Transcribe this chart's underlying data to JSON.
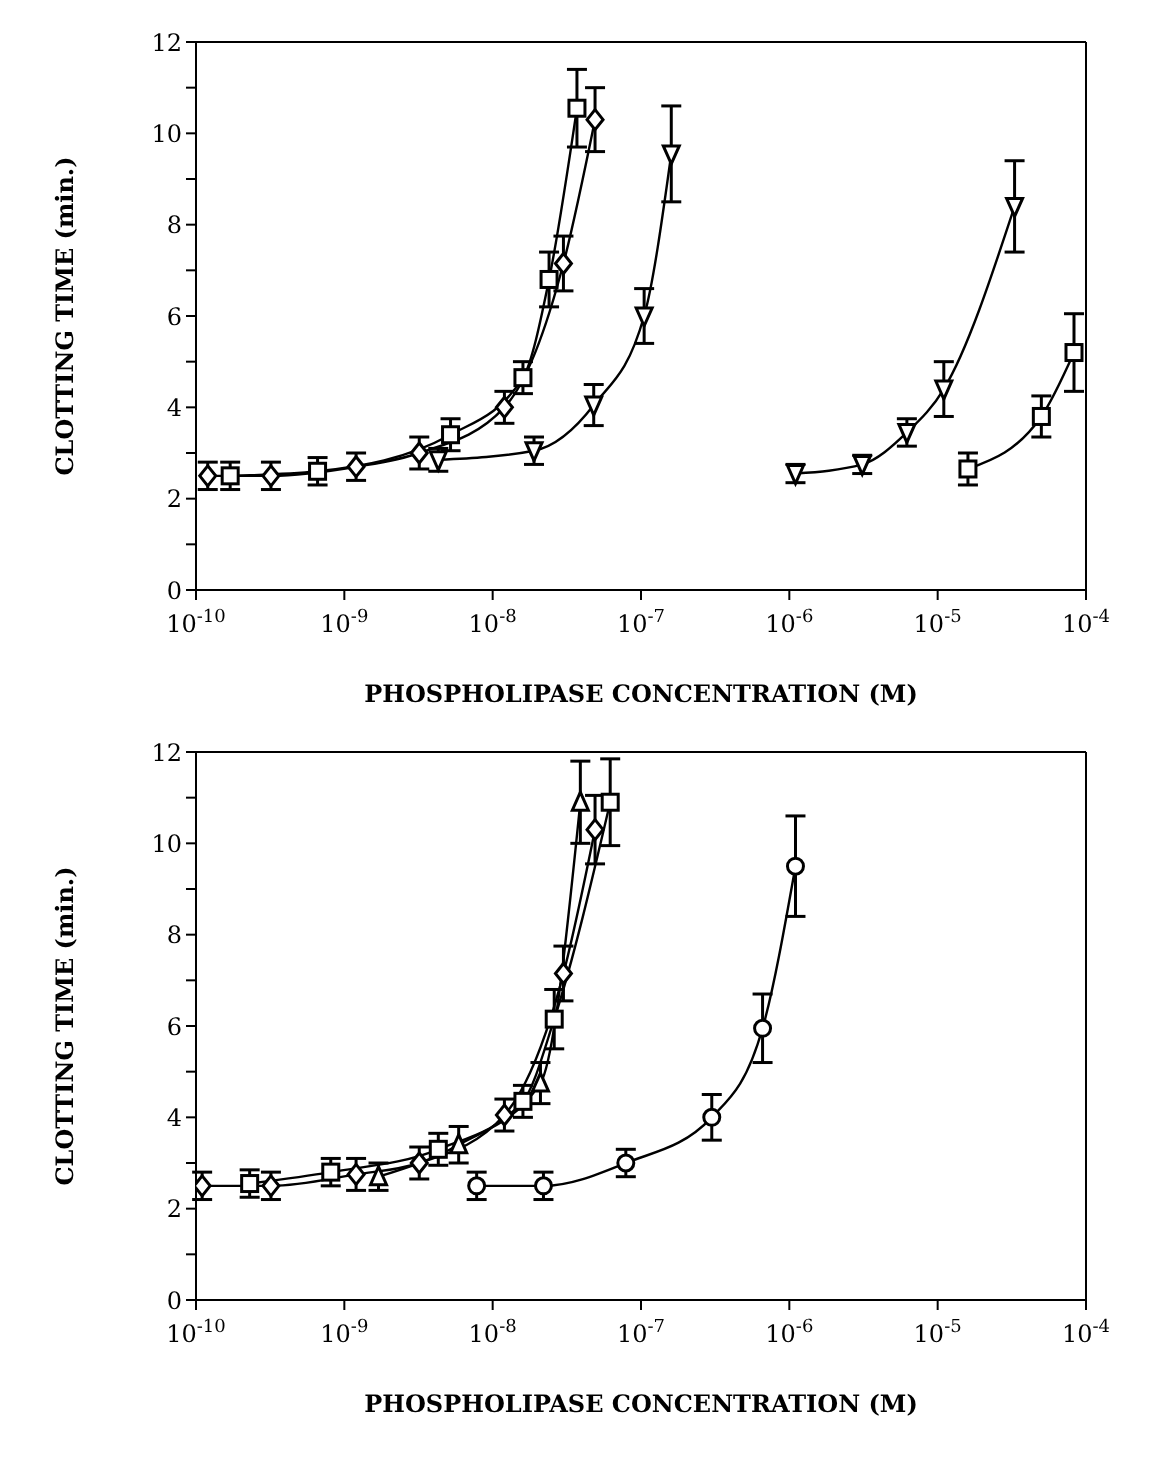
{
  "chart_data": [
    {
      "type": "line",
      "xlabel": "PHOSPHOLIPASE CONCENTRATION (M)",
      "ylabel": "CLOTTING TIME (min.)",
      "log": "x",
      "line_style": "solid",
      "xlim": [
        1e-10,
        0.0001
      ],
      "xticks": [
        {
          "value": 1e-10,
          "label": "10$^{-10}$"
        },
        {
          "value": 1e-09,
          "label": "10$^{-9}$"
        },
        {
          "value": 1e-08,
          "label": "10$^{-8}$"
        },
        {
          "value": 1e-07,
          "label": "10$^{-7}$"
        },
        {
          "value": 1e-06,
          "label": "10$^{-6}$"
        },
        {
          "value": 1e-05,
          "label": "10$^{-5}$"
        },
        {
          "value": 0.0001,
          "label": "10$^{-4}$"
        }
      ],
      "ylim": [
        0,
        12
      ],
      "yticks": [
        0,
        {
          "value": 1,
          "label": null
        },
        2,
        {
          "value": 3,
          "label": null
        },
        4,
        {
          "value": 5,
          "label": null
        },
        6,
        {
          "value": 7,
          "label": null
        },
        8,
        {
          "value": 9,
          "label": null
        },
        10,
        {
          "value": 11,
          "label": null
        },
        12
      ],
      "series": [
        {
          "color": "#000000",
          "marker": "diamond",
          "x": [
            1.2e-10,
            3.2e-10,
            1.2e-09,
            3.2e-09,
            1.2e-08,
            3e-08,
            4.9e-08
          ],
          "values": [
            2.5,
            2.5,
            2.7,
            3.0,
            4.0,
            7.15,
            10.3
          ],
          "errors": [
            0.3,
            0.3,
            0.3,
            0.35,
            0.35,
            0.6,
            0.7
          ]
        },
        {
          "color": "#000000",
          "marker": "square",
          "x": [
            1.7e-10,
            6.6e-10,
            5.2e-09,
            1.6e-08,
            2.4e-08,
            3.7e-08
          ],
          "values": [
            2.5,
            2.6,
            3.4,
            4.65,
            6.8,
            10.55
          ],
          "errors": [
            0.3,
            0.3,
            0.35,
            0.35,
            0.6,
            0.85
          ]
        },
        {
          "color": "#000000",
          "marker": "triangle_down",
          "x": [
            4.3e-09,
            1.9e-08,
            4.8e-08,
            1.05e-07,
            1.6e-07
          ],
          "values": [
            2.85,
            3.05,
            4.05,
            6.0,
            9.55
          ],
          "errors": [
            0.25,
            0.3,
            0.45,
            0.6,
            1.05
          ]
        },
        {
          "color": "#000000",
          "marker": "triangle_down",
          "x": [
            1.1e-06,
            3.1e-06,
            6.2e-06,
            1.1e-05,
            3.3e-05
          ],
          "values": [
            2.55,
            2.75,
            3.45,
            4.4,
            8.4
          ],
          "errors": [
            0.2,
            0.2,
            0.3,
            0.6,
            1.0
          ]
        },
        {
          "color": "#000000",
          "marker": "square",
          "x": [
            1.6e-05,
            5e-05,
            8.3e-05
          ],
          "values": [
            2.65,
            3.8,
            5.2
          ],
          "errors": [
            0.35,
            0.45,
            0.85
          ]
        }
      ]
    },
    {
      "type": "line",
      "xlabel": "PHOSPHOLIPASE CONCENTRATION (M)",
      "ylabel": "CLOTTING TIME (min.)",
      "log": "x",
      "line_style": "solid",
      "xlim": [
        1e-10,
        0.0001
      ],
      "xticks": [
        {
          "value": 1e-10,
          "label": "10$^{-10}$"
        },
        {
          "value": 1e-09,
          "label": "10$^{-9}$"
        },
        {
          "value": 1e-08,
          "label": "10$^{-8}$"
        },
        {
          "value": 1e-07,
          "label": "10$^{-7}$"
        },
        {
          "value": 1e-06,
          "label": "10$^{-6}$"
        },
        {
          "value": 1e-05,
          "label": "10$^{-5}$"
        },
        {
          "value": 0.0001,
          "label": "10$^{-4}$"
        }
      ],
      "ylim": [
        0,
        12
      ],
      "yticks": [
        0,
        {
          "value": 1,
          "label": null
        },
        2,
        {
          "value": 3,
          "label": null
        },
        4,
        {
          "value": 5,
          "label": null
        },
        6,
        {
          "value": 7,
          "label": null
        },
        8,
        {
          "value": 9,
          "label": null
        },
        10,
        {
          "value": 11,
          "label": null
        },
        12
      ],
      "series": [
        {
          "color": "#000000",
          "marker": "diamond",
          "x": [
            1.1e-10,
            3.2e-10,
            1.2e-09,
            3.2e-09,
            1.2e-08,
            3e-08,
            4.9e-08
          ],
          "values": [
            2.5,
            2.5,
            2.75,
            3.0,
            4.05,
            7.15,
            10.3
          ],
          "errors": [
            0.3,
            0.3,
            0.35,
            0.35,
            0.35,
            0.6,
            0.75
          ]
        },
        {
          "color": "#000000",
          "marker": "square",
          "x": [
            2.3e-10,
            8.1e-10,
            4.3e-09,
            1.6e-08,
            2.6e-08,
            6.2e-08
          ],
          "values": [
            2.55,
            2.8,
            3.3,
            4.35,
            6.15,
            10.9
          ],
          "errors": [
            0.3,
            0.3,
            0.35,
            0.35,
            0.65,
            0.95
          ]
        },
        {
          "color": "#000000",
          "marker": "triangle",
          "x": [
            1.7e-09,
            5.9e-09,
            2.1e-08,
            3.9e-08
          ],
          "values": [
            2.7,
            3.4,
            4.75,
            10.9
          ],
          "errors": [
            0.3,
            0.4,
            0.45,
            0.9
          ]
        },
        {
          "color": "#000000",
          "marker": "circle",
          "x": [
            7.8e-09,
            2.2e-08,
            7.9e-08,
            3e-07,
            6.6e-07,
            1.1e-06
          ],
          "values": [
            2.5,
            2.5,
            3.0,
            4.0,
            5.95,
            9.5
          ],
          "errors": [
            0.3,
            0.3,
            0.3,
            0.5,
            0.75,
            1.1
          ]
        }
      ]
    }
  ]
}
